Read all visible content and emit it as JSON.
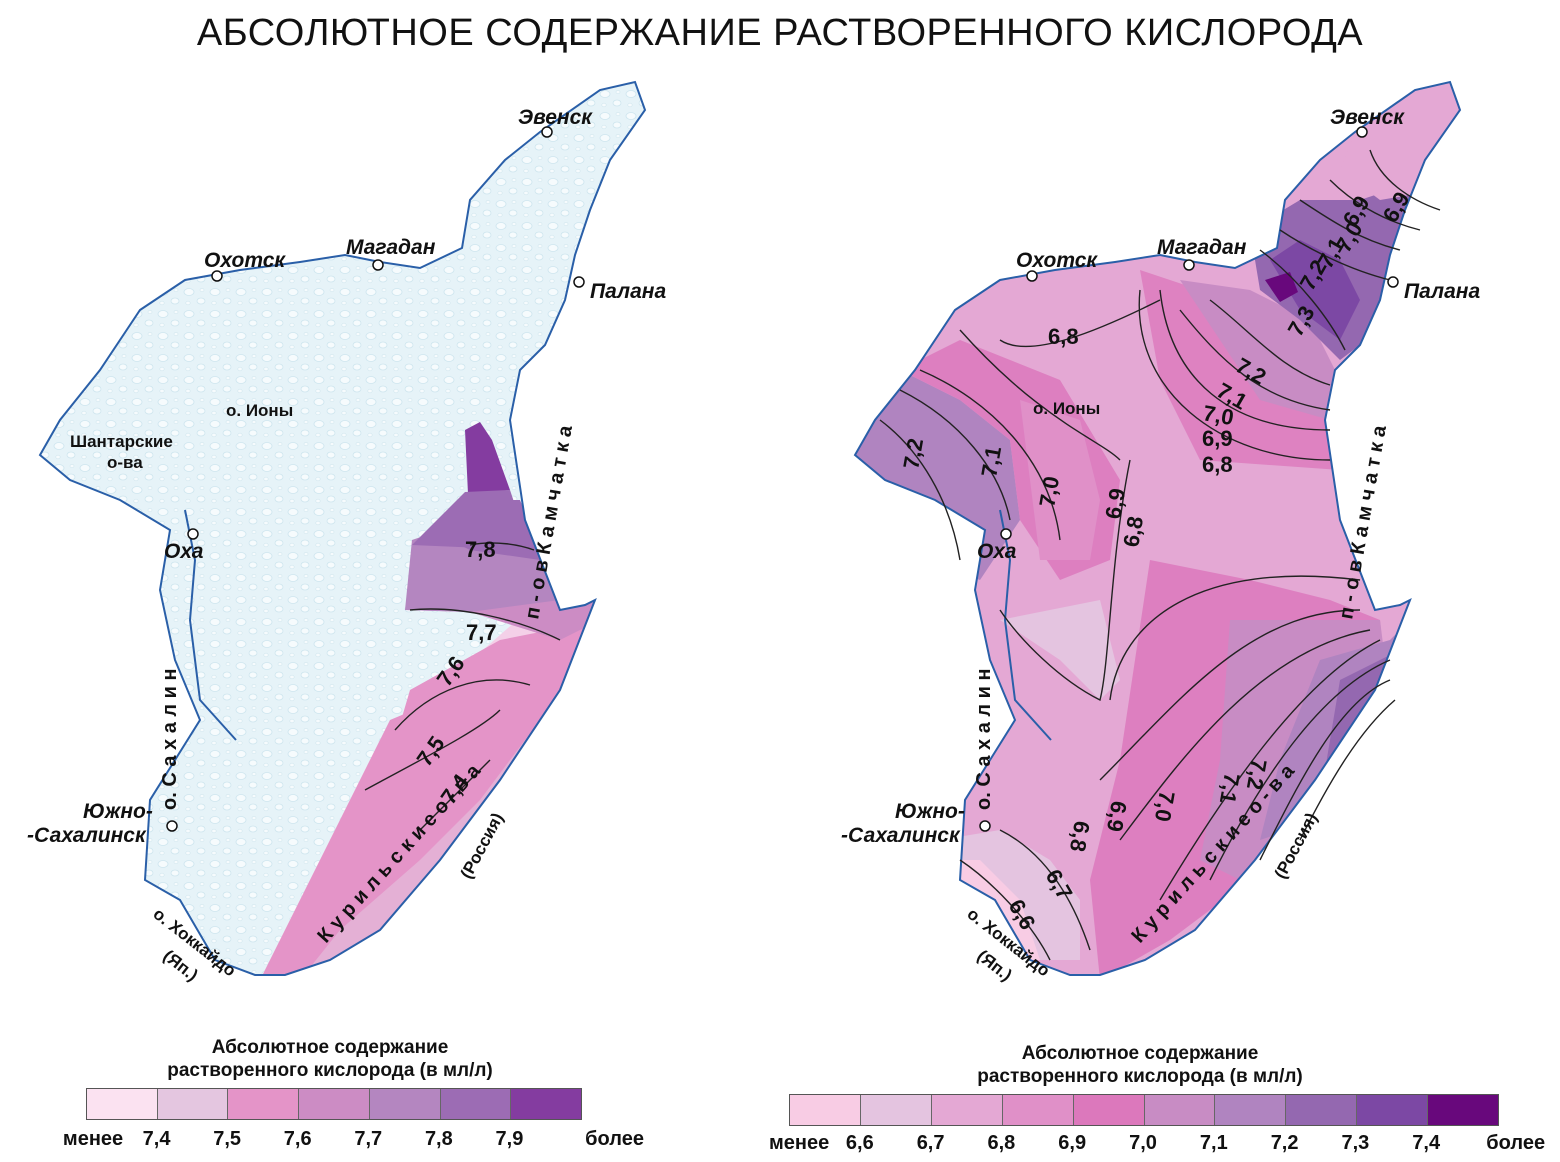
{
  "title": "АБСОЛЮТНОЕ СОДЕРЖАНИЕ РАСТВОРЕННОГО КИСЛОРОДА",
  "maps": [
    {
      "cities": {
        "evensk": "Эвенск",
        "okhotsk": "Охотск",
        "magadan": "Магадан",
        "palana": "Палана",
        "okha": "Оха",
        "yuzhno1": "Южно-",
        "yuzhno2": "-Сахалинск"
      },
      "places": {
        "iony": "о. Ионы",
        "shantar1": "Шантарские",
        "shantar2": "о-ва",
        "kamchatka": "п - о в   К а м ч а т к а",
        "sakhalin": "о.   С а х а л и н",
        "kurils": "К у р и л ь с к и е   о - в а",
        "russia": "(Россия)",
        "hokkaido": "о. Хоккайдо",
        "japan": "(Яп.)"
      },
      "isolines": [
        "7,8",
        "7,7",
        "7,6",
        "7,5",
        "7,4"
      ],
      "legend": {
        "title_line1": "Абсолютное содержание",
        "title_line2": "растворенного кислорода (в мл/л)",
        "colors": [
          "#fbe2f1",
          "#e4c6e0",
          "#e494c8",
          "#cc8cc4",
          "#b486c0",
          "#9c6cb4",
          "#843ca0"
        ],
        "low": "менее",
        "high": "более",
        "ticks": [
          "7,4",
          "7,5",
          "7,6",
          "7,7",
          "7,8",
          "7,9"
        ]
      }
    },
    {
      "cities": {
        "evensk": "Эвенск",
        "okhotsk": "Охотск",
        "magadan": "Магадан",
        "palana": "Палана",
        "okha": "Оха",
        "yuzhno1": "Южно-",
        "yuzhno2": "-Сахалинск"
      },
      "places": {
        "iony": "о. Ионы",
        "kamchatka": "п - о в   К а м ч а т к а",
        "sakhalin": "о.   С а х а л и н",
        "kurils": "К у р и л ь с к и е   о - в а",
        "russia": "(Россия)",
        "hokkaido": "о. Хоккайдо",
        "japan": "(Яп.)"
      },
      "isolines": [
        "6,9",
        "6,9",
        "7,0",
        "7,1",
        "7,2",
        "7,3",
        "7,2",
        "7,1",
        "7,0",
        "6,9",
        "6,8",
        "6,8",
        "7,2",
        "7,1",
        "7,0",
        "6,9",
        "6,8",
        "7,2",
        "7,1",
        "7,0",
        "6,9",
        "6,8",
        "6,7",
        "6,6"
      ],
      "legend": {
        "title_line1": "Абсолютное содержание",
        "title_line2": "растворенного кислорода (в мл/л)",
        "colors": [
          "#f8cce4",
          "#e4c4e0",
          "#e4a8d4",
          "#e090c8",
          "#dc78bc",
          "#c88cc4",
          "#b084c0",
          "#9468b0",
          "#7c48a4",
          "#68087c"
        ],
        "low": "менее",
        "high": "более",
        "ticks": [
          "6,6",
          "6,7",
          "6,8",
          "6,9",
          "7,0",
          "7,1",
          "7,2",
          "7,3",
          "7,4"
        ]
      }
    }
  ]
}
